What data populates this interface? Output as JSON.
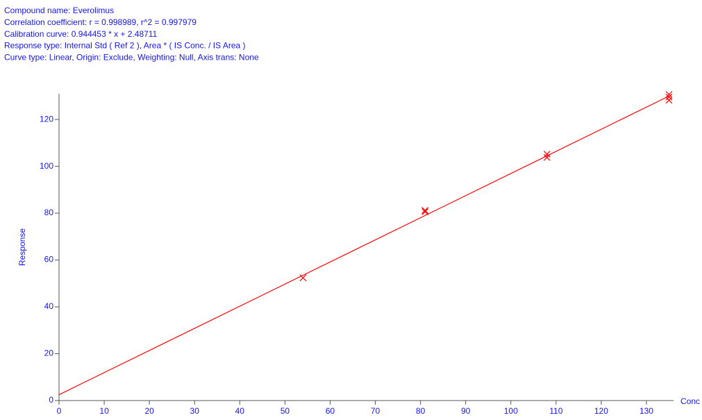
{
  "chart_data": {
    "type": "scatter",
    "header_lines": [
      "Compound name: Everolimus",
      "Correlation coefficient: r = 0.998989, r^2 = 0.997979",
      "Calibration curve: 0.944453 * x + 2.48711",
      "Response type: Internal Std ( Ref 2 ), Area * ( IS Conc. / IS Area )",
      "Curve type: Linear, Origin: Exclude, Weighting: Null, Axis trans: None"
    ],
    "xlabel": "Conc",
    "ylabel": "Response",
    "x": [
      54,
      81,
      81,
      108,
      108,
      135,
      135,
      135
    ],
    "values": [
      52.4,
      81.2,
      80.6,
      105.2,
      103.8,
      130.7,
      129.6,
      128.2
    ],
    "color": "#ff0000",
    "fit_line": {
      "x": [
        0,
        135
      ],
      "values": [
        2.5,
        130
      ],
      "color": "#ff0000"
    },
    "xlim": [
      0,
      136
    ],
    "ylim": [
      0,
      131
    ],
    "xticks": [
      0,
      10,
      20,
      30,
      40,
      50,
      60,
      70,
      80,
      90,
      100,
      110,
      120,
      130
    ],
    "yticks": [
      0,
      20,
      40,
      60,
      80,
      100,
      120
    ]
  }
}
